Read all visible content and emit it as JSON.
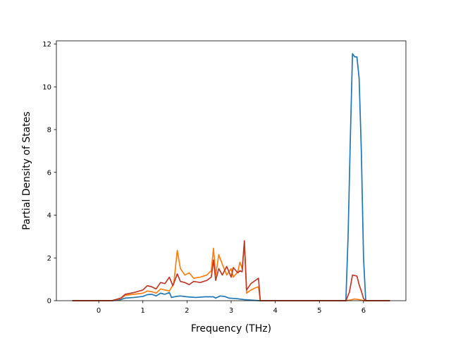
{
  "chart_data": {
    "type": "line",
    "title": "",
    "xlabel": "Frequency (THz)",
    "ylabel": "Partial Density of States",
    "xlim": [
      -0.96,
      6.96
    ],
    "ylim": [
      0,
      12.15
    ],
    "xticks": [
      0,
      1,
      2,
      3,
      4,
      5,
      6
    ],
    "yticks": [
      0,
      2,
      4,
      6,
      8,
      10,
      12
    ],
    "grid": false,
    "legend": "none",
    "series": [
      {
        "color": "#1f77b4",
        "points": [
          [
            -0.6,
            0
          ],
          [
            0.3,
            0
          ],
          [
            0.5,
            0.05
          ],
          [
            0.6,
            0.12
          ],
          [
            0.8,
            0.15
          ],
          [
            1.0,
            0.2
          ],
          [
            1.1,
            0.28
          ],
          [
            1.2,
            0.3
          ],
          [
            1.3,
            0.22
          ],
          [
            1.4,
            0.35
          ],
          [
            1.5,
            0.3
          ],
          [
            1.6,
            0.38
          ],
          [
            1.65,
            0.15
          ],
          [
            1.75,
            0.2
          ],
          [
            1.85,
            0.22
          ],
          [
            2.0,
            0.18
          ],
          [
            2.2,
            0.15
          ],
          [
            2.4,
            0.18
          ],
          [
            2.6,
            0.18
          ],
          [
            2.65,
            0.12
          ],
          [
            2.75,
            0.22
          ],
          [
            2.85,
            0.2
          ],
          [
            2.95,
            0.12
          ],
          [
            3.1,
            0.1
          ],
          [
            3.3,
            0.05
          ],
          [
            3.5,
            0.02
          ],
          [
            3.65,
            0
          ],
          [
            5.6,
            0
          ],
          [
            5.65,
            3.0
          ],
          [
            5.7,
            7.5
          ],
          [
            5.75,
            11.55
          ],
          [
            5.8,
            11.4
          ],
          [
            5.85,
            11.4
          ],
          [
            5.9,
            10.4
          ],
          [
            5.95,
            7.0
          ],
          [
            6.0,
            2.0
          ],
          [
            6.05,
            0
          ],
          [
            6.6,
            0
          ]
        ]
      },
      {
        "color": "#ff7f0e",
        "points": [
          [
            -0.6,
            0
          ],
          [
            0.3,
            0
          ],
          [
            0.5,
            0.1
          ],
          [
            0.6,
            0.25
          ],
          [
            0.8,
            0.3
          ],
          [
            1.0,
            0.35
          ],
          [
            1.1,
            0.45
          ],
          [
            1.2,
            0.42
          ],
          [
            1.3,
            0.35
          ],
          [
            1.4,
            0.55
          ],
          [
            1.5,
            0.5
          ],
          [
            1.6,
            0.45
          ],
          [
            1.7,
            0.8
          ],
          [
            1.78,
            2.35
          ],
          [
            1.85,
            1.5
          ],
          [
            1.95,
            1.2
          ],
          [
            2.05,
            1.3
          ],
          [
            2.15,
            1.05
          ],
          [
            2.3,
            1.1
          ],
          [
            2.45,
            1.2
          ],
          [
            2.55,
            1.4
          ],
          [
            2.6,
            2.45
          ],
          [
            2.65,
            1.2
          ],
          [
            2.72,
            2.15
          ],
          [
            2.8,
            1.7
          ],
          [
            2.9,
            1.2
          ],
          [
            3.0,
            1.5
          ],
          [
            3.05,
            1.1
          ],
          [
            3.15,
            1.35
          ],
          [
            3.2,
            1.8
          ],
          [
            3.25,
            1.5
          ],
          [
            3.3,
            2.75
          ],
          [
            3.35,
            0.35
          ],
          [
            3.45,
            0.5
          ],
          [
            3.55,
            0.6
          ],
          [
            3.62,
            0.65
          ],
          [
            3.66,
            0
          ],
          [
            5.6,
            0
          ],
          [
            5.7,
            0.03
          ],
          [
            5.8,
            0.08
          ],
          [
            5.9,
            0.05
          ],
          [
            6.0,
            0
          ],
          [
            6.6,
            0
          ]
        ]
      },
      {
        "color": "#c0392b",
        "points": [
          [
            -0.6,
            0
          ],
          [
            0.3,
            0
          ],
          [
            0.5,
            0.12
          ],
          [
            0.6,
            0.3
          ],
          [
            0.8,
            0.38
          ],
          [
            1.0,
            0.5
          ],
          [
            1.1,
            0.7
          ],
          [
            1.2,
            0.65
          ],
          [
            1.3,
            0.55
          ],
          [
            1.4,
            0.85
          ],
          [
            1.5,
            0.8
          ],
          [
            1.6,
            1.1
          ],
          [
            1.68,
            0.7
          ],
          [
            1.78,
            1.25
          ],
          [
            1.85,
            0.9
          ],
          [
            1.95,
            0.85
          ],
          [
            2.05,
            0.75
          ],
          [
            2.15,
            0.9
          ],
          [
            2.3,
            0.85
          ],
          [
            2.45,
            0.95
          ],
          [
            2.55,
            1.1
          ],
          [
            2.6,
            1.9
          ],
          [
            2.65,
            0.95
          ],
          [
            2.72,
            1.5
          ],
          [
            2.8,
            1.2
          ],
          [
            2.9,
            1.6
          ],
          [
            3.0,
            1.1
          ],
          [
            3.05,
            1.55
          ],
          [
            3.15,
            1.3
          ],
          [
            3.2,
            1.4
          ],
          [
            3.25,
            1.35
          ],
          [
            3.3,
            2.8
          ],
          [
            3.35,
            0.5
          ],
          [
            3.45,
            0.8
          ],
          [
            3.55,
            0.95
          ],
          [
            3.62,
            1.05
          ],
          [
            3.66,
            0
          ],
          [
            5.6,
            0
          ],
          [
            5.68,
            0.4
          ],
          [
            5.75,
            1.2
          ],
          [
            5.85,
            1.15
          ],
          [
            5.9,
            0.75
          ],
          [
            5.95,
            0.45
          ],
          [
            6.0,
            0.1
          ],
          [
            6.05,
            0
          ],
          [
            6.6,
            0
          ]
        ]
      }
    ]
  }
}
